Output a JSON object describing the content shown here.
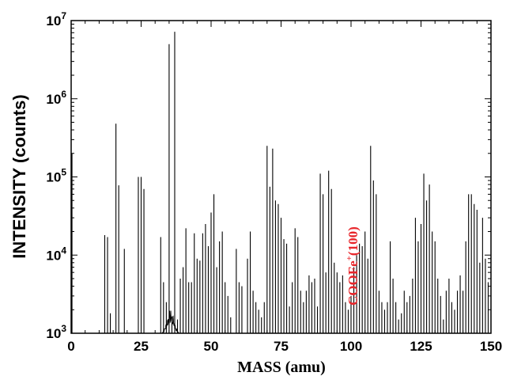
{
  "chart_data": {
    "type": "bar",
    "title": "",
    "xlabel": "MASS (amu)",
    "ylabel": "INTENSITY (counts)",
    "xlim": [
      0,
      150
    ],
    "ylim": [
      1000,
      10000000
    ],
    "y_scale": "log",
    "grid": false,
    "x_ticks": [
      {
        "value": 0,
        "label": "0"
      },
      {
        "value": 25,
        "label": "25"
      },
      {
        "value": 50,
        "label": "50"
      },
      {
        "value": 75,
        "label": "75"
      },
      {
        "value": 100,
        "label": "100"
      },
      {
        "value": 125,
        "label": "125"
      },
      {
        "value": 150,
        "label": "150"
      }
    ],
    "y_ticks": [
      {
        "value": 1000,
        "base": "10",
        "exp": "3"
      },
      {
        "value": 10000,
        "base": "10",
        "exp": "4"
      },
      {
        "value": 100000,
        "base": "10",
        "exp": "5"
      },
      {
        "value": 1000000,
        "base": "10",
        "exp": "6"
      },
      {
        "value": 10000000,
        "base": "10",
        "exp": "7"
      }
    ],
    "annotation": {
      "text": "COOFe",
      "sup": "+",
      "suffix": "(100)",
      "color": "#e8262b",
      "x": 101,
      "y": 2000
    },
    "series": [
      {
        "color": "#000000",
        "peaks": [
          [
            0.3,
            200000
          ],
          [
            12,
            18000
          ],
          [
            13,
            17000
          ],
          [
            14,
            1800
          ],
          [
            16,
            480000
          ],
          [
            17,
            78000
          ],
          [
            19,
            12000
          ],
          [
            24,
            100000
          ],
          [
            25,
            100000
          ],
          [
            26,
            70000
          ],
          [
            32,
            17000
          ],
          [
            33,
            4500
          ],
          [
            34,
            2500
          ],
          [
            35,
            5000000
          ],
          [
            36,
            1400
          ],
          [
            37,
            7200000
          ],
          [
            38,
            1500
          ],
          [
            39,
            5000
          ],
          [
            40,
            7000
          ],
          [
            41,
            22000
          ],
          [
            42,
            4500
          ],
          [
            43,
            4500
          ],
          [
            44,
            19000
          ],
          [
            45,
            9000
          ],
          [
            46,
            8500
          ],
          [
            47,
            19000
          ],
          [
            48,
            25000
          ],
          [
            49,
            13000
          ],
          [
            50,
            35000
          ],
          [
            51,
            60000
          ],
          [
            52,
            7000
          ],
          [
            53,
            15000
          ],
          [
            54,
            20000
          ],
          [
            55,
            4500
          ],
          [
            56,
            3000
          ],
          [
            57,
            1600
          ],
          [
            59,
            12000
          ],
          [
            60,
            4500
          ],
          [
            61,
            4000
          ],
          [
            63,
            9000
          ],
          [
            64,
            20000
          ],
          [
            65,
            3500
          ],
          [
            66,
            2500
          ],
          [
            67,
            2000
          ],
          [
            68,
            1600
          ],
          [
            69,
            2500
          ],
          [
            70,
            250000
          ],
          [
            71,
            75000
          ],
          [
            72,
            230000
          ],
          [
            73,
            50000
          ],
          [
            74,
            45000
          ],
          [
            75,
            30000
          ],
          [
            76,
            16000
          ],
          [
            77,
            14000
          ],
          [
            78,
            2200
          ],
          [
            79,
            4500
          ],
          [
            80,
            22000
          ],
          [
            81,
            17000
          ],
          [
            82,
            3500
          ],
          [
            83,
            2500
          ],
          [
            84,
            3500
          ],
          [
            85,
            5500
          ],
          [
            86,
            4500
          ],
          [
            87,
            5000
          ],
          [
            88,
            2200
          ],
          [
            89,
            110000
          ],
          [
            90,
            60000
          ],
          [
            91,
            6000
          ],
          [
            92,
            120000
          ],
          [
            93,
            70000
          ],
          [
            94,
            8000
          ],
          [
            95,
            6000
          ],
          [
            96,
            4500
          ],
          [
            97,
            5500
          ],
          [
            98,
            2500
          ],
          [
            99,
            2000
          ],
          [
            100,
            3000
          ],
          [
            101,
            7000
          ],
          [
            102,
            10000
          ],
          [
            103,
            14000
          ],
          [
            104,
            13000
          ],
          [
            105,
            20000
          ],
          [
            106,
            9000
          ],
          [
            107,
            250000
          ],
          [
            108,
            90000
          ],
          [
            109,
            60000
          ],
          [
            110,
            3500
          ],
          [
            111,
            2500
          ],
          [
            112,
            2000
          ],
          [
            113,
            2500
          ],
          [
            114,
            15000
          ],
          [
            115,
            5000
          ],
          [
            116,
            2500
          ],
          [
            117,
            1500
          ],
          [
            118,
            1800
          ],
          [
            119,
            3500
          ],
          [
            120,
            2500
          ],
          [
            121,
            3000
          ],
          [
            122,
            5000
          ],
          [
            123,
            30000
          ],
          [
            124,
            15000
          ],
          [
            125,
            25000
          ],
          [
            126,
            110000
          ],
          [
            127,
            50000
          ],
          [
            128,
            80000
          ],
          [
            129,
            20000
          ],
          [
            130,
            15000
          ],
          [
            131,
            5000
          ],
          [
            132,
            3000
          ],
          [
            133,
            1500
          ],
          [
            134,
            3500
          ],
          [
            135,
            5000
          ],
          [
            136,
            2500
          ],
          [
            137,
            2000
          ],
          [
            138,
            3500
          ],
          [
            139,
            5500
          ],
          [
            140,
            3500
          ],
          [
            141,
            15000
          ],
          [
            142,
            60000
          ],
          [
            143,
            60000
          ],
          [
            144,
            45000
          ],
          [
            145,
            38000
          ],
          [
            146,
            8000
          ],
          [
            147,
            30000
          ],
          [
            148,
            9000
          ],
          [
            149,
            4500
          ]
        ]
      }
    ]
  }
}
